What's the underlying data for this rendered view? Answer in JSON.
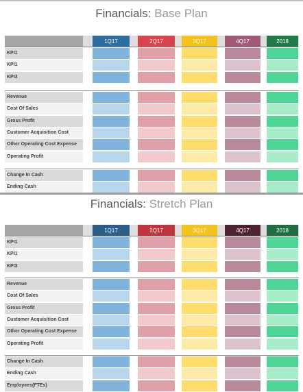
{
  "base": {
    "title_main": "Financials:",
    "title_sub": " Base Plan",
    "columns": [
      "1Q17",
      "2Q17",
      "3Q17",
      "4Q17",
      "2018"
    ],
    "sections": [
      {
        "rows": [
          "KPI1",
          "KPI1",
          "KPI3"
        ]
      },
      {
        "rows": [
          "Revenue",
          "Cost Of Sales",
          "Gross Profit",
          "Customer Acquisition Cost",
          "Other Operating Cost Expense",
          "Operating Profit"
        ]
      },
      {
        "rows": [
          "Change In Cash",
          "Ending Cash"
        ]
      }
    ]
  },
  "stretch": {
    "title_main": "Financials:",
    "title_sub": " Stretch Plan",
    "columns": [
      "1Q17",
      "2Q17",
      "3Q17",
      "4Q17",
      "2018"
    ],
    "sections": [
      {
        "rows": [
          "KPI1",
          "KPI1",
          "KPI3"
        ]
      },
      {
        "rows": [
          "Revenue",
          "Cost Of Sales",
          "Gross Profit",
          "Customer Acquisition Cost",
          "Other Operating Cost Expense",
          "Operating Profit"
        ]
      },
      {
        "rows": [
          "Change In Cash",
          "Ending Cash",
          "Employees(FTEs)"
        ]
      }
    ]
  },
  "colors": {
    "base_header": [
      "#2e6e9e",
      "#d9434c",
      "#f4c21c",
      "#a05a78",
      "#1f7a45"
    ],
    "stretch_header": [
      "#2b5f8a",
      "#c0363f",
      "#f4c21c",
      "#4e2431",
      "#1f6e40"
    ],
    "dark": [
      "#7fb3dc",
      "#e0a0a8",
      "#fedc6c",
      "#b8899b",
      "#4fd697"
    ],
    "light": [
      "#b9d7ec",
      "#f2c9cd",
      "#fdeaa6",
      "#dcc2cc",
      "#a7ecc9"
    ],
    "label_dark": "#d9d9d9",
    "label_light": "#f2f2f2"
  }
}
